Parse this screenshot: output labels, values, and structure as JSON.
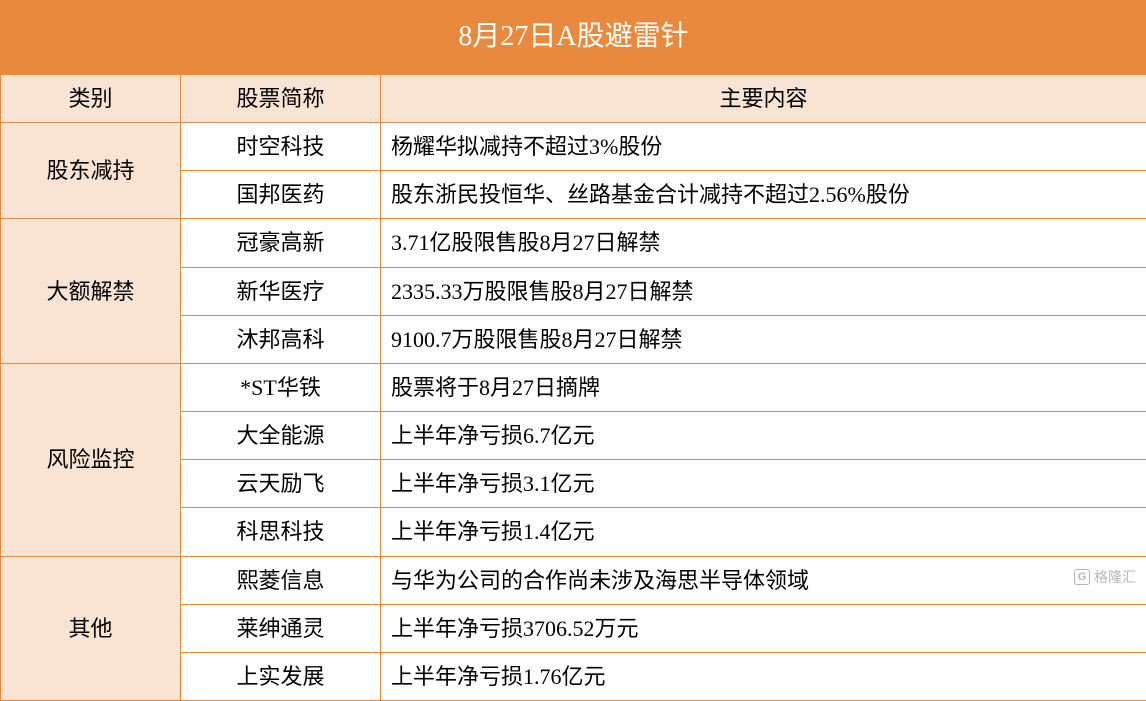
{
  "title": "8月27日A股避雷针",
  "columns": {
    "category": "类别",
    "stock": "股票简称",
    "content": "主要内容"
  },
  "col_widths": {
    "category": 180,
    "stock": 200,
    "content": 766
  },
  "colors": {
    "border": "#e8893e",
    "title_bg": "#e8893e",
    "title_fg": "#ffffff",
    "header_bg": "#f9e3d3",
    "cell_bg": "#ffffff",
    "text": "#000000"
  },
  "font": {
    "family": "SimSun",
    "title_size": 28,
    "body_size": 22
  },
  "categories": [
    {
      "name": "股东减持",
      "rows": [
        {
          "stock": "时空科技",
          "content": "杨耀华拟减持不超过3%股份"
        },
        {
          "stock": "国邦医药",
          "content": "股东浙民投恒华、丝路基金合计减持不超过2.56%股份"
        }
      ]
    },
    {
      "name": "大额解禁",
      "rows": [
        {
          "stock": "冠豪高新",
          "content": "3.71亿股限售股8月27日解禁"
        },
        {
          "stock": "新华医疗",
          "content": "2335.33万股限售股8月27日解禁"
        },
        {
          "stock": "沐邦高科",
          "content": "9100.7万股限售股8月27日解禁"
        }
      ]
    },
    {
      "name": "风险监控",
      "rows": [
        {
          "stock": "*ST华铁",
          "content": "股票将于8月27日摘牌"
        },
        {
          "stock": "大全能源",
          "content": "上半年净亏损6.7亿元"
        },
        {
          "stock": "云天励飞",
          "content": "上半年净亏损3.1亿元"
        },
        {
          "stock": "科思科技",
          "content": "上半年净亏损1.4亿元"
        }
      ]
    },
    {
      "name": "其他",
      "rows": [
        {
          "stock": "熙菱信息",
          "content": "与华为公司的合作尚未涉及海思半导体领域"
        },
        {
          "stock": "莱绅通灵",
          "content": "上半年净亏损3706.52万元"
        },
        {
          "stock": "上实发展",
          "content": "上半年净亏损1.76亿元"
        }
      ]
    }
  ],
  "watermark": "格隆汇"
}
